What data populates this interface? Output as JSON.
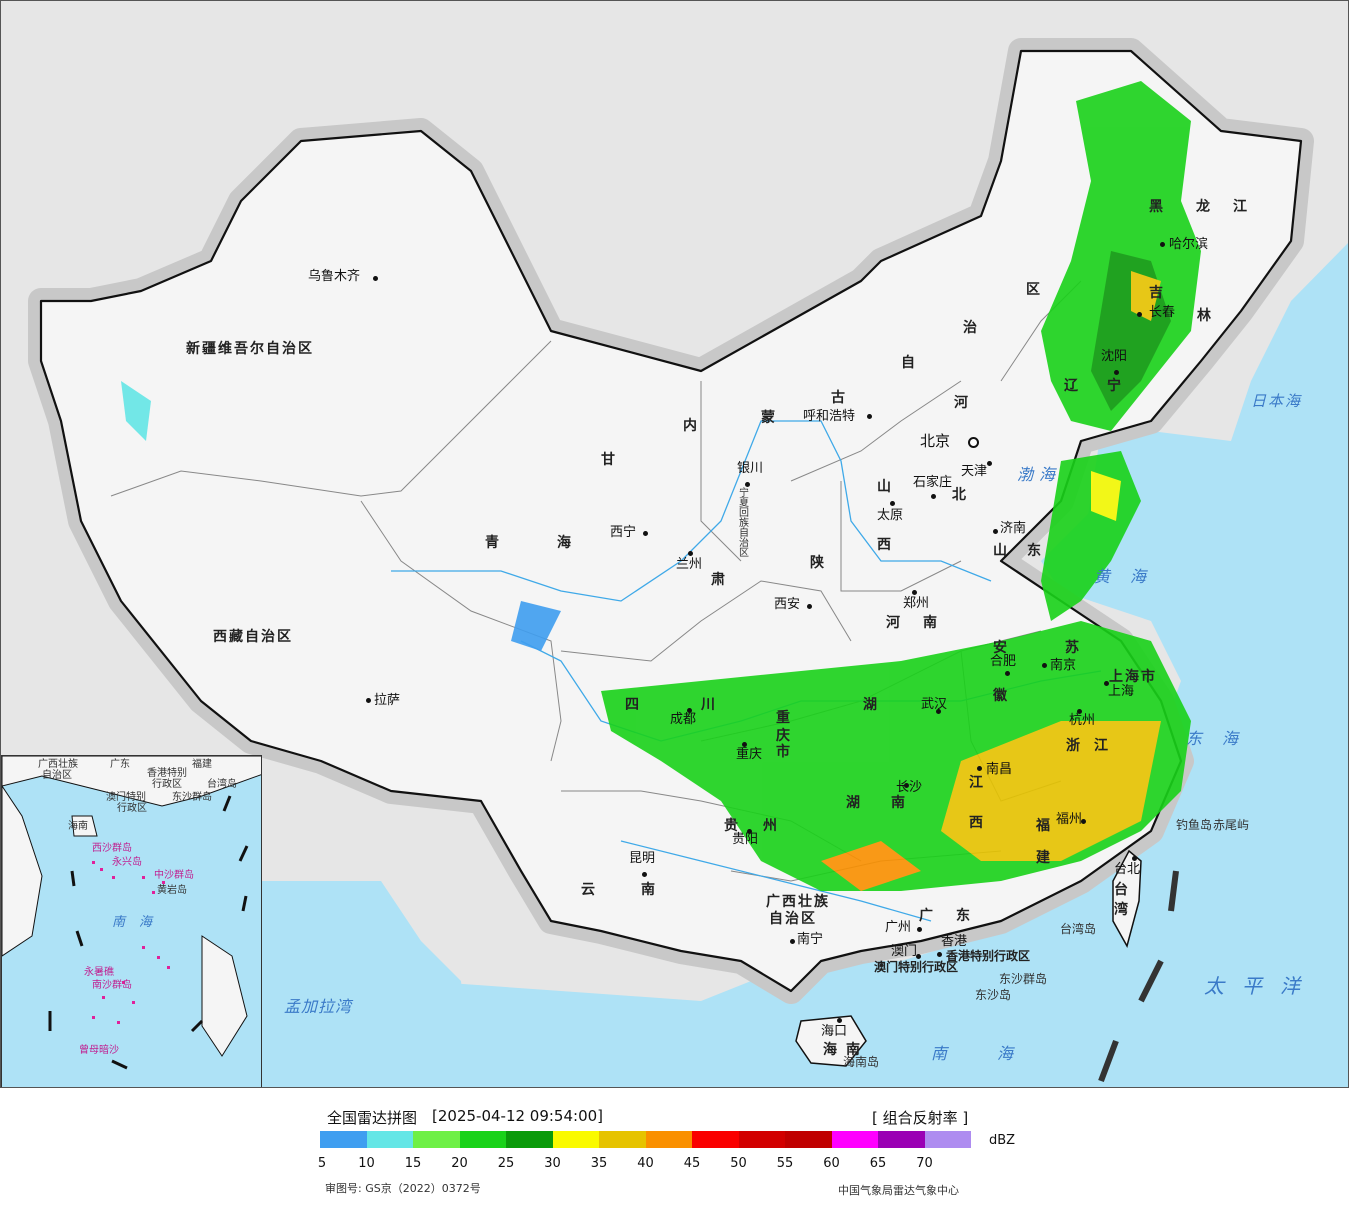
{
  "map": {
    "title": "全国雷达拼图",
    "timestamp": "[2025-04-12 09:54:00]",
    "product": "[ 组合反射率 ]",
    "unit": "dBZ",
    "review_number": "审图号: GS京（2022）0372号",
    "credit": "中国气象局雷达气象中心",
    "colors": {
      "land": "#f5f5f5",
      "outside": "#e6e6e6",
      "sea": "#aee2f6",
      "river": "#3fa9e8",
      "border": "#111111",
      "province_border": "#888888"
    },
    "legend": {
      "ticks": [
        "5",
        "10",
        "15",
        "20",
        "25",
        "30",
        "35",
        "40",
        "45",
        "50",
        "55",
        "60",
        "65",
        "70"
      ],
      "colors": [
        "#3f9ef0",
        "#64e6e6",
        "#6ef046",
        "#19d219",
        "#0a9a0a",
        "#fafa00",
        "#e6c300",
        "#fa9000",
        "#fa0000",
        "#d20000",
        "#c00000",
        "#ff00ff",
        "#9a00b4",
        "#ae8cf0"
      ]
    },
    "provinces": [
      "新疆维吾尔自治区",
      "西藏自治区",
      "青",
      "海",
      "甘",
      "肃",
      "内",
      "蒙",
      "古",
      "自",
      "治",
      "区",
      "黑",
      "龙",
      "江",
      "吉",
      "林",
      "辽",
      "宁",
      "河",
      "北",
      "山",
      "西",
      "陕",
      "四",
      "川",
      "重",
      "庆",
      "市",
      "云",
      "南",
      "贵",
      "州",
      "广西壮族",
      "自治区",
      "广",
      "东",
      "湖",
      "湖",
      "南",
      "江",
      "西",
      "福",
      "建",
      "浙",
      "江",
      "苏",
      "安",
      "徽",
      "山",
      "东",
      "河",
      "南",
      "上海市",
      "台",
      "湾",
      "海",
      "南",
      "宁夏回族自治区",
      "香港特别行政区",
      "澳门特别行政区"
    ],
    "cities": [
      "乌鲁木齐",
      "拉萨",
      "西宁",
      "兰州",
      "银川",
      "呼和浩特",
      "北京",
      "天津",
      "石家庄",
      "太原",
      "济南",
      "郑州",
      "西安",
      "成都",
      "重庆",
      "武汉",
      "合肥",
      "南京",
      "上海",
      "杭州",
      "南昌",
      "长沙",
      "贵阳",
      "昆明",
      "南宁",
      "广州",
      "香港",
      "澳门",
      "福州",
      "台北",
      "海口",
      "哈尔滨",
      "长春",
      "沈阳"
    ],
    "seas": [
      "日本海",
      "渤海",
      "黄海",
      "东海",
      "太平洋",
      "南海",
      "孟加拉湾",
      "南海"
    ],
    "islands": [
      "钓鱼岛",
      "赤尾屿",
      "台湾岛",
      "东沙群岛",
      "东沙岛",
      "海南岛"
    ],
    "inset_labels": [
      "广西壮族",
      "自治区",
      "广东",
      "香港特别",
      "行政区",
      "澳门特别",
      "行政区",
      "东沙群岛",
      "台湾岛",
      "海南",
      "西沙群岛",
      "永兴岛",
      "中沙群岛",
      "黄岩岛",
      "南海",
      "南沙群岛",
      "永暑礁",
      "曾母暗沙",
      "福建"
    ]
  }
}
